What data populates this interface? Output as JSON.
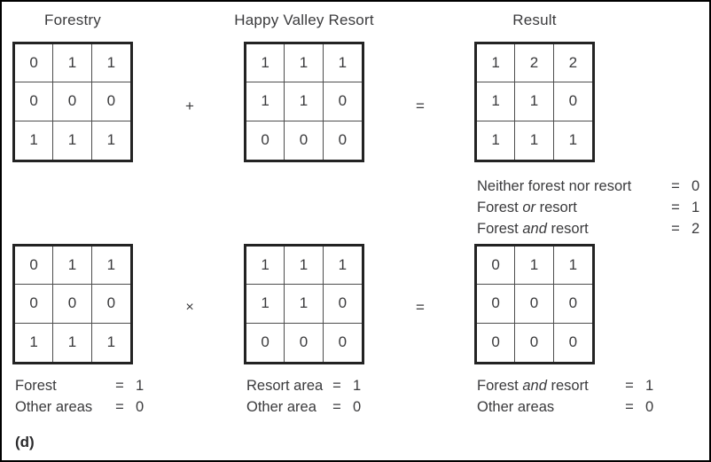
{
  "figure_label": "(d)",
  "colors": {
    "background": "#ffffff",
    "frame_border": "#000000",
    "grid_border": "#232323",
    "grid_inner_line": "#4d4d4d",
    "text": "#3a3a3c"
  },
  "titles": {
    "forestry": "Forestry",
    "resort": "Happy Valley Resort",
    "result": "Result"
  },
  "operators": {
    "plus": "+",
    "times": "×",
    "equals": "="
  },
  "equations": [
    {
      "operation": "addition",
      "grids": [
        [
          [
            "0",
            "1",
            "1"
          ],
          [
            "0",
            "0",
            "0"
          ],
          [
            "1",
            "1",
            "1"
          ]
        ],
        [
          [
            "1",
            "1",
            "1"
          ],
          [
            "1",
            "1",
            "0"
          ],
          [
            "0",
            "0",
            "0"
          ]
        ],
        [
          [
            "1",
            "2",
            "2"
          ],
          [
            "1",
            "1",
            "0"
          ],
          [
            "1",
            "1",
            "1"
          ]
        ]
      ]
    },
    {
      "operation": "multiplication",
      "grids": [
        [
          [
            "0",
            "1",
            "1"
          ],
          [
            "0",
            "0",
            "0"
          ],
          [
            "1",
            "1",
            "1"
          ]
        ],
        [
          [
            "1",
            "1",
            "1"
          ],
          [
            "1",
            "1",
            "0"
          ],
          [
            "0",
            "0",
            "0"
          ]
        ],
        [
          [
            "0",
            "1",
            "1"
          ],
          [
            "0",
            "0",
            "0"
          ],
          [
            "0",
            "0",
            "0"
          ]
        ]
      ]
    }
  ],
  "result_legend": {
    "rows": [
      {
        "segments": [
          {
            "text": "Neither forest nor resort"
          }
        ],
        "value": "0"
      },
      {
        "segments": [
          {
            "text": "Forest "
          },
          {
            "text": "or",
            "italic": true
          },
          {
            "text": " resort"
          }
        ],
        "value": "1"
      },
      {
        "segments": [
          {
            "text": "Forest "
          },
          {
            "text": "and",
            "italic": true
          },
          {
            "text": " resort"
          }
        ],
        "value": "2"
      }
    ]
  },
  "bottom_legends": [
    {
      "rows": [
        {
          "segments": [
            {
              "text": "Forest"
            }
          ],
          "value": "1"
        },
        {
          "segments": [
            {
              "text": "Other areas"
            }
          ],
          "value": "0"
        }
      ]
    },
    {
      "rows": [
        {
          "segments": [
            {
              "text": "Resort area"
            }
          ],
          "value": "1"
        },
        {
          "segments": [
            {
              "text": "Other area"
            }
          ],
          "value": "0"
        }
      ]
    },
    {
      "rows": [
        {
          "segments": [
            {
              "text": "Forest "
            },
            {
              "text": "and",
              "italic": true
            },
            {
              "text": " resort"
            }
          ],
          "value": "1"
        },
        {
          "segments": [
            {
              "text": "Other areas"
            }
          ],
          "value": "0"
        }
      ]
    }
  ]
}
